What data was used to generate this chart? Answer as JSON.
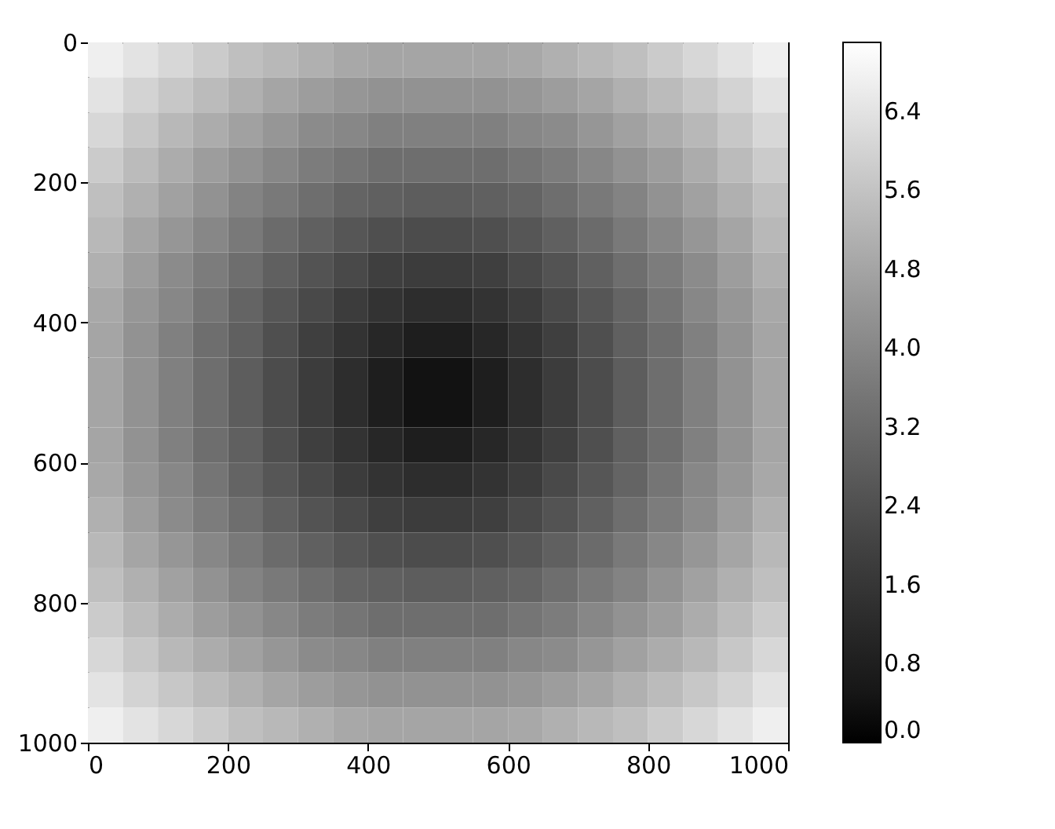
{
  "chart_data": {
    "type": "heatmap",
    "xlim": [
      0,
      1000
    ],
    "ylim": [
      1000,
      0
    ],
    "xticks": [
      0,
      200,
      400,
      600,
      800,
      1000
    ],
    "yticks": [
      0,
      200,
      400,
      600,
      800,
      1000
    ],
    "clim": [
      0,
      7.1
    ],
    "cticks": [
      {
        "value": 0,
        "label": "0.0"
      },
      {
        "value": 0.8,
        "label": "0.8"
      },
      {
        "value": 1.6,
        "label": "1.6"
      },
      {
        "value": 2.4,
        "label": "2.4"
      },
      {
        "value": 3.2,
        "label": "3.2"
      },
      {
        "value": 4,
        "label": "4.0"
      },
      {
        "value": 4.8,
        "label": "4.8"
      },
      {
        "value": 5.6,
        "label": "5.6"
      },
      {
        "value": 6.4,
        "label": "6.4"
      }
    ],
    "cells": [
      [
        6.7,
        6.4,
        6.1,
        5.8,
        5.5,
        5.3,
        5.1,
        4.9,
        4.8,
        4.8,
        4.8,
        4.8,
        4.9,
        5.1,
        5.3,
        5.5,
        5.8,
        6.1,
        6.4,
        6.7
      ],
      [
        6.4,
        6.0,
        5.7,
        5.4,
        5.1,
        4.8,
        4.6,
        4.4,
        4.3,
        4.3,
        4.3,
        4.3,
        4.4,
        4.6,
        4.8,
        5.1,
        5.4,
        5.7,
        6.0,
        6.4
      ],
      [
        6.1,
        5.7,
        5.3,
        5.0,
        4.7,
        4.4,
        4.1,
        4.0,
        3.8,
        3.8,
        3.8,
        3.8,
        4.0,
        4.1,
        4.4,
        4.7,
        5.0,
        5.3,
        5.7,
        6.1
      ],
      [
        5.8,
        5.4,
        5.0,
        4.6,
        4.3,
        4.0,
        3.7,
        3.5,
        3.3,
        3.3,
        3.3,
        3.3,
        3.5,
        3.7,
        4.0,
        4.3,
        4.6,
        5.0,
        5.4,
        5.8
      ],
      [
        5.5,
        5.1,
        4.7,
        4.3,
        3.9,
        3.6,
        3.3,
        3.0,
        2.9,
        2.8,
        2.8,
        2.9,
        3.0,
        3.3,
        3.6,
        3.9,
        4.3,
        4.7,
        5.1,
        5.5
      ],
      [
        5.3,
        4.8,
        4.4,
        4.0,
        3.6,
        3.2,
        2.9,
        2.6,
        2.4,
        2.3,
        2.3,
        2.4,
        2.6,
        2.9,
        3.2,
        3.6,
        4.0,
        4.4,
        4.8,
        5.3
      ],
      [
        5.1,
        4.6,
        4.1,
        3.7,
        3.3,
        2.9,
        2.5,
        2.2,
        1.9,
        1.8,
        1.8,
        1.9,
        2.2,
        2.5,
        2.9,
        3.3,
        3.7,
        4.1,
        4.6,
        5.1
      ],
      [
        4.9,
        4.4,
        4.0,
        3.5,
        3.0,
        2.6,
        2.2,
        1.8,
        1.5,
        1.3,
        1.3,
        1.5,
        1.8,
        2.2,
        2.6,
        3.0,
        3.5,
        4.0,
        4.4,
        4.9
      ],
      [
        4.8,
        4.3,
        3.8,
        3.3,
        2.9,
        2.4,
        1.9,
        1.5,
        1.1,
        0.8,
        0.8,
        1.1,
        1.5,
        1.9,
        2.4,
        2.9,
        3.3,
        3.8,
        4.3,
        4.8
      ],
      [
        4.8,
        4.3,
        3.8,
        3.3,
        2.8,
        2.3,
        1.8,
        1.3,
        0.8,
        0.4,
        0.4,
        0.8,
        1.3,
        1.8,
        2.3,
        2.8,
        3.3,
        3.8,
        4.3,
        4.8
      ],
      [
        4.8,
        4.3,
        3.8,
        3.3,
        2.8,
        2.3,
        1.8,
        1.3,
        0.8,
        0.4,
        0.4,
        0.8,
        1.3,
        1.8,
        2.3,
        2.8,
        3.3,
        3.8,
        4.3,
        4.8
      ],
      [
        4.8,
        4.3,
        3.8,
        3.3,
        2.9,
        2.4,
        1.9,
        1.5,
        1.1,
        0.8,
        0.8,
        1.1,
        1.5,
        1.9,
        2.4,
        2.9,
        3.3,
        3.8,
        4.3,
        4.8
      ],
      [
        4.9,
        4.4,
        4.0,
        3.5,
        3.0,
        2.6,
        2.2,
        1.8,
        1.5,
        1.3,
        1.3,
        1.5,
        1.8,
        2.2,
        2.6,
        3.0,
        3.5,
        4.0,
        4.4,
        4.9
      ],
      [
        5.1,
        4.6,
        4.1,
        3.7,
        3.3,
        2.9,
        2.5,
        2.2,
        1.9,
        1.8,
        1.8,
        1.9,
        2.2,
        2.5,
        2.9,
        3.3,
        3.7,
        4.1,
        4.6,
        5.1
      ],
      [
        5.3,
        4.8,
        4.4,
        4.0,
        3.6,
        3.2,
        2.9,
        2.6,
        2.4,
        2.3,
        2.3,
        2.4,
        2.6,
        2.9,
        3.2,
        3.6,
        4.0,
        4.4,
        4.8,
        5.3
      ],
      [
        5.5,
        5.1,
        4.7,
        4.3,
        3.9,
        3.6,
        3.3,
        3.0,
        2.9,
        2.8,
        2.8,
        2.9,
        3.0,
        3.3,
        3.6,
        3.9,
        4.3,
        4.7,
        5.1,
        5.5
      ],
      [
        5.8,
        5.4,
        5.0,
        4.6,
        4.3,
        4.0,
        3.7,
        3.5,
        3.3,
        3.3,
        3.3,
        3.3,
        3.5,
        3.7,
        4.0,
        4.3,
        4.6,
        5.0,
        5.4,
        5.8
      ],
      [
        6.1,
        5.7,
        5.3,
        5.0,
        4.7,
        4.4,
        4.1,
        4.0,
        3.8,
        3.8,
        3.8,
        3.8,
        4.0,
        4.1,
        4.4,
        4.7,
        5.0,
        5.3,
        5.7,
        6.1
      ],
      [
        6.4,
        6.0,
        5.7,
        5.4,
        5.1,
        4.8,
        4.6,
        4.4,
        4.3,
        4.3,
        4.3,
        4.3,
        4.4,
        4.6,
        4.8,
        5.1,
        5.4,
        5.7,
        6.0,
        6.4
      ],
      [
        6.7,
        6.4,
        6.1,
        5.8,
        5.5,
        5.3,
        5.1,
        4.9,
        4.8,
        4.8,
        4.8,
        4.8,
        4.9,
        5.1,
        5.3,
        5.5,
        5.8,
        6.1,
        6.4,
        6.7
      ]
    ]
  }
}
